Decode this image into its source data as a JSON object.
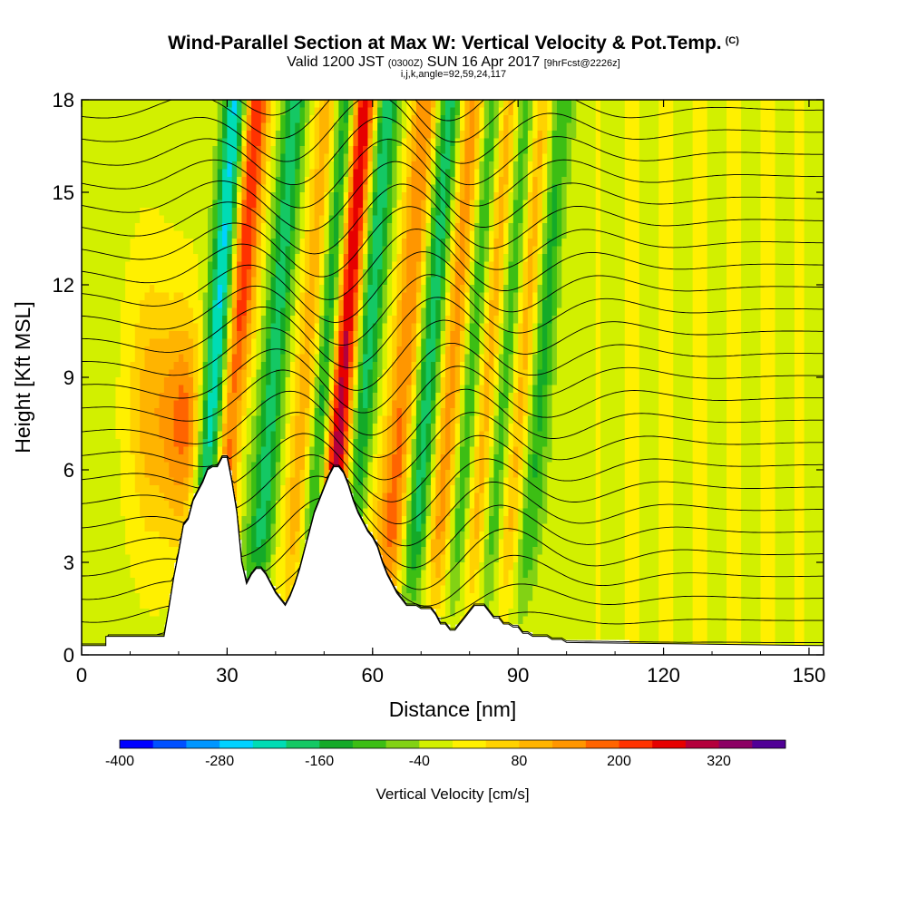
{
  "title": {
    "main": "Wind-Parallel Section at Max W: Vertical Velocity & Pot.Temp.",
    "copyright": "(C)",
    "valid_prefix": "Valid 1200 JST",
    "valid_utc": "(0300Z)",
    "valid_date": "SUN 16 Apr 2017",
    "forecast": "[9hrFcst@2226z]",
    "indices": "i,j,k,angle=92,59,24,117"
  },
  "chart_data": {
    "type": "heatmap",
    "xlabel": "Distance [nm]",
    "ylabel": "Height [Kft MSL]",
    "xlim": [
      0,
      153
    ],
    "ylim": [
      0,
      18
    ],
    "xticks": [
      0,
      30,
      60,
      90,
      120,
      150
    ],
    "yticks": [
      0,
      3,
      6,
      9,
      12,
      15,
      18
    ],
    "field": "Vertical Velocity",
    "contours": "Pot.Temp.",
    "colorbar": {
      "title": "Vertical Velocity [cm/s]",
      "min": -400,
      "max": 400,
      "step": 40,
      "tick_values": [
        -400,
        -280,
        -160,
        -40,
        80,
        200,
        320
      ],
      "tick_labels": [
        "-400",
        "-280",
        "-160",
        "-40",
        "80",
        "200",
        "320"
      ],
      "colors": [
        "#0000ff",
        "#0050ff",
        "#0096ff",
        "#00d2ff",
        "#00dcb4",
        "#14c864",
        "#14aa28",
        "#3cbe14",
        "#82d214",
        "#d2f000",
        "#fff000",
        "#ffd200",
        "#ffb400",
        "#ff9600",
        "#ff6400",
        "#ff3200",
        "#e60000",
        "#b4003c",
        "#8c0064",
        "#500096"
      ]
    },
    "terrain": {
      "x": [
        0,
        5,
        5,
        16,
        17,
        18,
        19,
        20,
        21,
        22,
        23,
        24,
        25,
        26,
        27,
        28,
        29,
        30,
        31,
        32,
        33,
        34,
        35,
        36,
        37,
        38,
        39,
        40,
        41,
        42,
        43,
        44,
        45,
        46,
        47,
        48,
        49,
        50,
        51,
        52,
        53,
        54,
        55,
        56,
        57,
        58,
        59,
        60,
        61,
        62,
        63,
        64,
        65,
        66,
        67,
        68,
        69,
        70,
        71,
        72,
        73,
        74,
        75,
        76,
        77,
        78,
        79,
        80,
        81,
        82,
        83,
        84,
        85,
        86,
        87,
        88,
        89,
        90,
        91,
        92,
        93,
        94,
        95,
        96,
        97,
        98,
        99,
        100,
        153
      ],
      "y": [
        0.3,
        0.3,
        0.6,
        0.6,
        0.6,
        1.5,
        2.5,
        3.3,
        4.2,
        4.4,
        5.0,
        5.3,
        5.6,
        6.0,
        6.1,
        6.1,
        6.4,
        6.4,
        5.6,
        4.6,
        3.0,
        2.3,
        2.6,
        2.8,
        2.8,
        2.6,
        2.3,
        2.0,
        1.8,
        1.6,
        1.9,
        2.3,
        2.8,
        3.4,
        4.0,
        4.6,
        5.0,
        5.4,
        5.8,
        6.1,
        6.1,
        5.9,
        5.5,
        5.0,
        4.6,
        4.3,
        4.0,
        3.8,
        3.5,
        3.0,
        2.6,
        2.3,
        2.0,
        1.8,
        1.6,
        1.6,
        1.6,
        1.5,
        1.5,
        1.5,
        1.3,
        1.0,
        1.0,
        0.8,
        0.8,
        1.0,
        1.2,
        1.4,
        1.6,
        1.6,
        1.6,
        1.4,
        1.2,
        1.2,
        1.0,
        1.0,
        0.9,
        0.9,
        0.7,
        0.7,
        0.6,
        0.6,
        0.6,
        0.6,
        0.5,
        0.5,
        0.5,
        0.4,
        0.3
      ]
    },
    "updraft_bands_x_at_18kft": [
      36,
      51,
      58,
      71,
      81,
      88,
      95
    ],
    "downdraft_bands_x_at_18kft": [
      32,
      44,
      55,
      63,
      76,
      85,
      92,
      99
    ]
  }
}
